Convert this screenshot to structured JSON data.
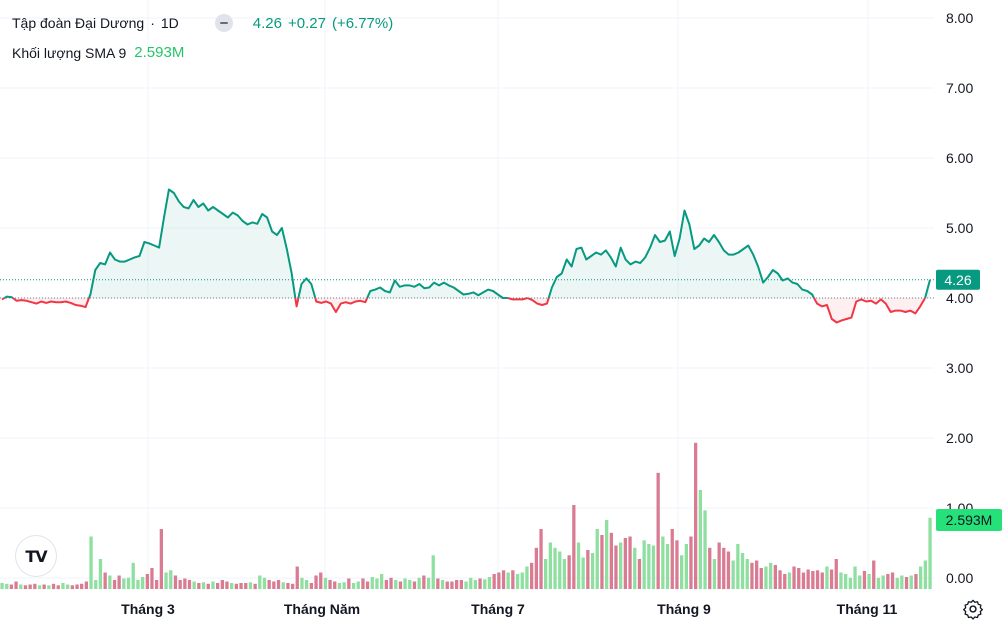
{
  "legend": {
    "symbol_name": "Tập đoàn Đại Dương",
    "interval": "1D",
    "separator": "·",
    "last_price": "4.26",
    "change": "+0.27",
    "change_pct": "(+6.77%)",
    "volume_label": "Khối lượng SMA 9",
    "volume_value": "2.593M"
  },
  "colors": {
    "up": "#089981",
    "down": "#f23645",
    "up_fill": "rgba(8,153,129,0.08)",
    "down_fill": "rgba(242,54,69,0.08)",
    "vol_up": "#8fe0a0",
    "vol_down": "#d97c93",
    "grid": "#f0f3fa",
    "text": "#131722",
    "vol_badge": "#26e07a",
    "price_badge": "#089981"
  },
  "icons": {
    "logo": "tradingview-logo-icon",
    "settings": "gear-icon",
    "collapse": "collapse-pill-icon"
  },
  "chart_data": {
    "type": "area",
    "baseline": 4.0,
    "ylim": [
      0,
      8.0
    ],
    "y_ticks": [
      "8.00",
      "7.00",
      "6.00",
      "5.00",
      "4.00",
      "3.00",
      "2.00",
      "1.00",
      "0.00"
    ],
    "x_tick_labels": [
      "Tháng 3",
      "Tháng Năm",
      "Tháng 7",
      "Tháng 9",
      "Tháng 11"
    ],
    "price_label": "4.26",
    "volume_label": "2.593M",
    "price_series": [
      3.98,
      4.02,
      4.01,
      3.96,
      3.97,
      3.96,
      3.94,
      3.92,
      3.95,
      3.93,
      3.95,
      3.94,
      3.94,
      3.95,
      3.93,
      3.9,
      3.89,
      3.87,
      4.05,
      4.4,
      4.5,
      4.48,
      4.65,
      4.55,
      4.52,
      4.52,
      4.55,
      4.58,
      4.6,
      4.8,
      4.78,
      4.75,
      4.72,
      5.15,
      5.55,
      5.5,
      5.38,
      5.3,
      5.28,
      5.4,
      5.3,
      5.35,
      5.25,
      5.3,
      5.25,
      5.2,
      5.15,
      5.22,
      5.18,
      5.1,
      5.05,
      5.08,
      5.06,
      5.2,
      5.15,
      4.95,
      4.9,
      5.0,
      4.7,
      4.35,
      3.88,
      4.2,
      4.28,
      4.2,
      3.95,
      3.93,
      3.95,
      3.92,
      3.8,
      3.92,
      3.94,
      3.92,
      3.95,
      3.96,
      3.94,
      4.1,
      4.12,
      4.15,
      4.1,
      4.08,
      4.25,
      4.16,
      4.18,
      4.18,
      4.16,
      4.2,
      4.14,
      4.15,
      4.22,
      4.18,
      4.22,
      4.18,
      4.15,
      4.1,
      4.05,
      4.06,
      4.08,
      4.04,
      4.08,
      4.12,
      4.1,
      4.05,
      4.0,
      4.0,
      3.98,
      3.98,
      3.98,
      4.0,
      3.97,
      3.92,
      3.9,
      3.92,
      4.15,
      4.3,
      4.35,
      4.55,
      4.45,
      4.7,
      4.72,
      4.55,
      4.6,
      4.65,
      4.62,
      4.68,
      4.58,
      4.45,
      4.72,
      4.55,
      4.48,
      4.52,
      4.5,
      4.58,
      4.72,
      4.9,
      4.8,
      4.82,
      4.95,
      4.6,
      4.85,
      5.25,
      5.05,
      4.7,
      4.75,
      4.85,
      4.8,
      4.9,
      4.8,
      4.68,
      4.62,
      4.62,
      4.65,
      4.7,
      4.75,
      4.62,
      4.45,
      4.22,
      4.3,
      4.4,
      4.35,
      4.25,
      4.28,
      4.22,
      4.2,
      4.12,
      4.1,
      4.05,
      3.92,
      3.88,
      3.9,
      3.7,
      3.65,
      3.68,
      3.7,
      3.72,
      3.95,
      3.98,
      3.95,
      3.96,
      3.92,
      3.98,
      3.92,
      3.8,
      3.82,
      3.82,
      3.8,
      3.82,
      3.78,
      3.88,
      4.0,
      4.26
    ],
    "volume_series": [
      0.08,
      0.07,
      0.06,
      0.1,
      0.06,
      0.05,
      0.06,
      0.07,
      0.05,
      0.06,
      0.05,
      0.07,
      0.05,
      0.08,
      0.06,
      0.05,
      0.06,
      0.07,
      0.1,
      0.7,
      0.12,
      0.4,
      0.22,
      0.18,
      0.12,
      0.18,
      0.14,
      0.15,
      0.35,
      0.12,
      0.16,
      0.2,
      0.28,
      0.12,
      0.8,
      0.22,
      0.25,
      0.18,
      0.12,
      0.14,
      0.12,
      0.1,
      0.08,
      0.09,
      0.07,
      0.1,
      0.08,
      0.12,
      0.1,
      0.08,
      0.07,
      0.08,
      0.08,
      0.09,
      0.07,
      0.18,
      0.15,
      0.12,
      0.1,
      0.12,
      0.09,
      0.08,
      0.07,
      0.3,
      0.15,
      0.12,
      0.08,
      0.18,
      0.22,
      0.15,
      0.12,
      0.1,
      0.08,
      0.09,
      0.14,
      0.08,
      0.1,
      0.14,
      0.1,
      0.16,
      0.14,
      0.2,
      0.12,
      0.15,
      0.12,
      0.1,
      0.14,
      0.12,
      0.1,
      0.15,
      0.18,
      0.15,
      0.45,
      0.14,
      0.12,
      0.1,
      0.1,
      0.12,
      0.12,
      0.1,
      0.15,
      0.12,
      0.14,
      0.13,
      0.16,
      0.2,
      0.22,
      0.25,
      0.22,
      0.25,
      0.2,
      0.22,
      0.3,
      0.35,
      0.55,
      0.8,
      0.4,
      0.62,
      0.55,
      0.5,
      0.4,
      0.45,
      1.12,
      0.62,
      0.42,
      0.52,
      0.48,
      0.8,
      0.72,
      0.92,
      0.75,
      0.58,
      0.62,
      0.68,
      0.7,
      0.55,
      0.4,
      0.65,
      0.6,
      0.58,
      1.55,
      0.7,
      0.6,
      0.8,
      0.65,
      0.45,
      0.6,
      0.7,
      1.95,
      1.32,
      1.05,
      0.55,
      0.4,
      0.62,
      0.55,
      0.5,
      0.38,
      0.6,
      0.48,
      0.4,
      0.35,
      0.38,
      0.28,
      0.3,
      0.35,
      0.32,
      0.25,
      0.2,
      0.22,
      0.3,
      0.28,
      0.22,
      0.26,
      0.24,
      0.25,
      0.22,
      0.3,
      0.26,
      0.4,
      0.22,
      0.2,
      0.15,
      0.3,
      0.18,
      0.24,
      0.2,
      0.38,
      0.15,
      0.18,
      0.2,
      0.22,
      0.15,
      0.18,
      0.16,
      0.18,
      0.2,
      0.3,
      0.38,
      0.95
    ]
  }
}
